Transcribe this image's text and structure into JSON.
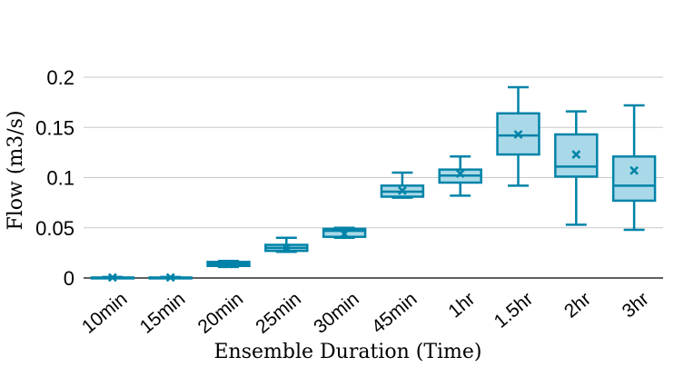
{
  "chart_data": {
    "type": "box",
    "title": "",
    "xlabel": "Ensemble Duration (Time)",
    "ylabel": "Flow (m3/s)",
    "ylim": [
      0,
      0.2
    ],
    "yticks": [
      0,
      0.05,
      0.1,
      0.15,
      0.2
    ],
    "ytick_labels": [
      "0",
      "0.05",
      "0.1",
      "0.15",
      "0.2"
    ],
    "grid": "horizontal",
    "colors": {
      "stroke": "#0083a8",
      "fill": "#a9d9e8",
      "grid": "#c8c8c8"
    },
    "categories": [
      "10min",
      "15min",
      "20min",
      "25min",
      "30min",
      "45min",
      "1hr",
      "1.5hr",
      "2hr",
      "3hr"
    ],
    "boxes": [
      {
        "min": 0.0,
        "q1": 0.0,
        "median": 0.0,
        "q3": 0.0005,
        "max": 0.001,
        "mean": 0.0005
      },
      {
        "min": 0.0,
        "q1": 0.0,
        "median": 0.0,
        "q3": 0.0005,
        "max": 0.001,
        "mean": 0.0005
      },
      {
        "min": 0.011,
        "q1": 0.012,
        "median": 0.014,
        "q3": 0.016,
        "max": 0.017,
        "mean": 0.014
      },
      {
        "min": 0.026,
        "q1": 0.027,
        "median": 0.03,
        "q3": 0.033,
        "max": 0.04,
        "mean": 0.03
      },
      {
        "min": 0.04,
        "q1": 0.041,
        "median": 0.047,
        "q3": 0.049,
        "max": 0.05,
        "mean": 0.044
      },
      {
        "min": 0.08,
        "q1": 0.081,
        "median": 0.086,
        "q3": 0.092,
        "max": 0.105,
        "mean": 0.087
      },
      {
        "min": 0.082,
        "q1": 0.095,
        "median": 0.102,
        "q3": 0.108,
        "max": 0.121,
        "mean": 0.104
      },
      {
        "min": 0.092,
        "q1": 0.123,
        "median": 0.142,
        "q3": 0.164,
        "max": 0.19,
        "mean": 0.143
      },
      {
        "min": 0.053,
        "q1": 0.101,
        "median": 0.111,
        "q3": 0.143,
        "max": 0.166,
        "mean": 0.123
      },
      {
        "min": 0.048,
        "q1": 0.077,
        "median": 0.092,
        "q3": 0.121,
        "max": 0.172,
        "mean": 0.107
      }
    ]
  }
}
